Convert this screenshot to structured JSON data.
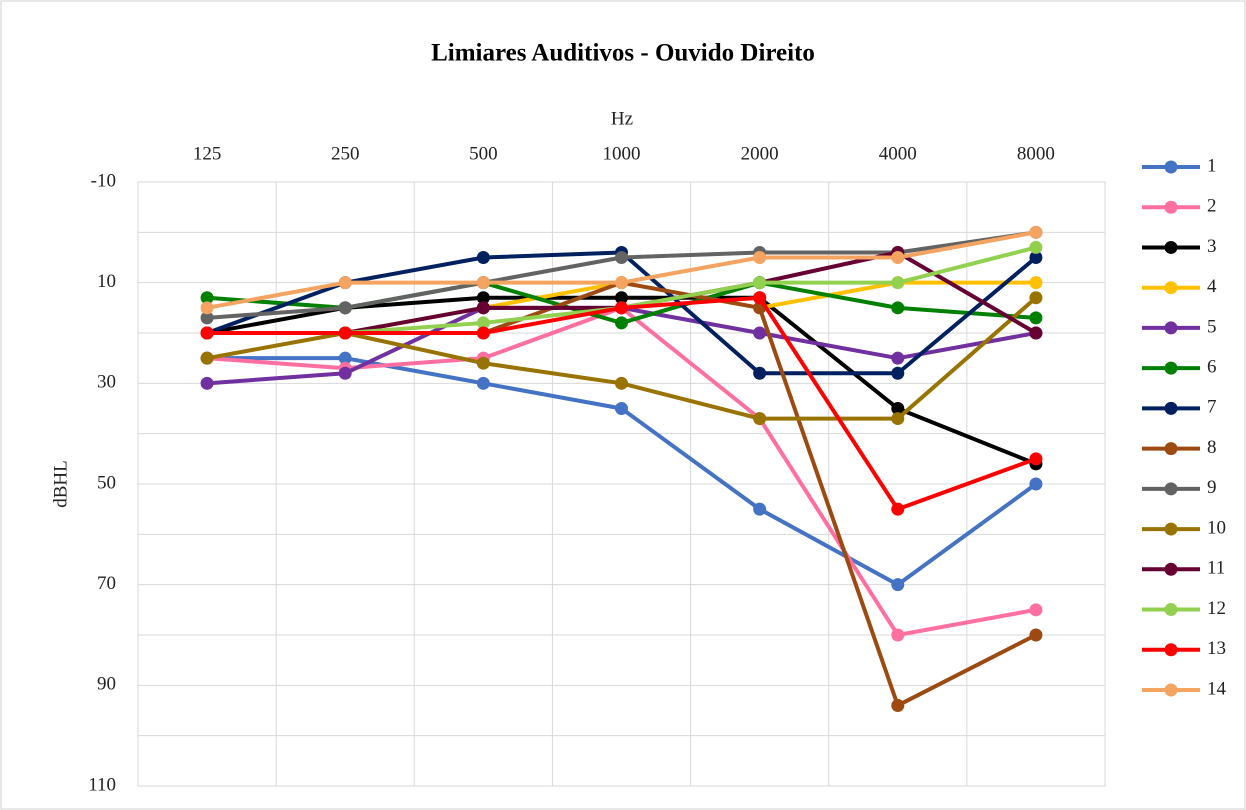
{
  "chart_data": {
    "type": "line",
    "title": "Limiares Auditivos - Ouvido Direito",
    "x_label": "Hz",
    "y_label": "dBHL",
    "categories": [
      "125",
      "250",
      "500",
      "1000",
      "2000",
      "4000",
      "8000"
    ],
    "ylim": [
      -10,
      110
    ],
    "y_inverted": true,
    "yticks": [
      -10,
      10,
      30,
      50,
      70,
      90,
      110
    ],
    "y_minor_ticks": [
      0,
      20,
      40,
      60,
      80,
      100
    ],
    "grid": true,
    "x_axis_position": "top",
    "legend": "right",
    "series": [
      {
        "name": "1",
        "color": "#4472c4",
        "values": [
          25,
          25,
          30,
          35,
          55,
          70,
          50
        ]
      },
      {
        "name": "2",
        "color": "#ff6f9f",
        "values": [
          25,
          27,
          25,
          15,
          37,
          80,
          75
        ]
      },
      {
        "name": "3",
        "color": "#000000",
        "values": [
          20,
          15,
          13,
          13,
          13,
          35,
          46
        ]
      },
      {
        "name": "4",
        "color": "#ffc000",
        "values": [
          20,
          20,
          15,
          10,
          15,
          10,
          10
        ]
      },
      {
        "name": "5",
        "color": "#7030a0",
        "values": [
          30,
          28,
          15,
          15,
          20,
          25,
          20
        ]
      },
      {
        "name": "6",
        "color": "#008000",
        "values": [
          13,
          15,
          10,
          18,
          10,
          15,
          17
        ]
      },
      {
        "name": "7",
        "color": "#002060",
        "values": [
          20,
          10,
          5,
          4,
          28,
          28,
          5
        ]
      },
      {
        "name": "8",
        "color": "#9c4a12",
        "values": [
          20,
          20,
          20,
          10,
          15,
          94,
          80
        ]
      },
      {
        "name": "9",
        "color": "#636363",
        "values": [
          17,
          15,
          10,
          5,
          4,
          4,
          0
        ]
      },
      {
        "name": "10",
        "color": "#997300",
        "values": [
          25,
          20,
          26,
          30,
          37,
          37,
          13
        ]
      },
      {
        "name": "11",
        "color": "#660033",
        "values": [
          20,
          20,
          15,
          15,
          10,
          4,
          20
        ]
      },
      {
        "name": "12",
        "color": "#92d050",
        "values": [
          20,
          20,
          18,
          15,
          10,
          10,
          3
        ]
      },
      {
        "name": "13",
        "color": "#ff0000",
        "values": [
          20,
          20,
          20,
          15,
          13,
          55,
          45
        ]
      },
      {
        "name": "14",
        "color": "#f4a460",
        "values": [
          15,
          10,
          10,
          10,
          5,
          5,
          0
        ]
      }
    ]
  }
}
